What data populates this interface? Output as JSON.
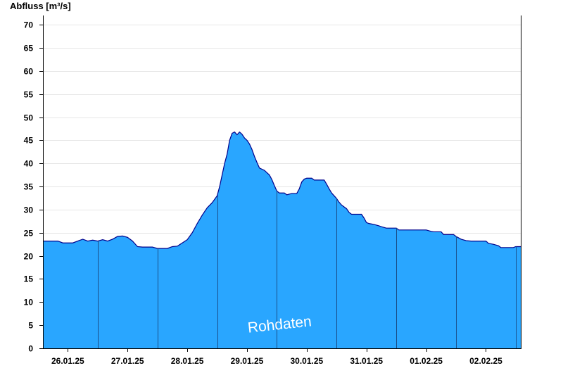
{
  "chart_data": {
    "type": "area",
    "title": "",
    "ylabel": "Abfluss [m³/s]",
    "xlabel": "",
    "ylim": [
      0,
      72
    ],
    "yticks": [
      0,
      5,
      10,
      15,
      20,
      25,
      30,
      35,
      40,
      45,
      50,
      55,
      60,
      65,
      70
    ],
    "xlim": [
      "2025-01-25T14:00",
      "2025-02-02T14:00"
    ],
    "xticks": [
      {
        "label": "26.01.25",
        "date": "2025-01-26T00:00"
      },
      {
        "label": "27.01.25",
        "date": "2025-01-27T00:00"
      },
      {
        "label": "28.01.25",
        "date": "2025-01-28T00:00"
      },
      {
        "label": "29.01.25",
        "date": "2025-01-29T00:00"
      },
      {
        "label": "30.01.25",
        "date": "2025-01-30T00:00"
      },
      {
        "label": "31.01.25",
        "date": "2025-01-31T00:00"
      },
      {
        "label": "01.02.25",
        "date": "2025-02-01T00:00"
      },
      {
        "label": "02.02.25",
        "date": "2025-02-02T00:00"
      }
    ],
    "grid": true,
    "fill_color": "#29a6ff",
    "line_color": "#00008b",
    "watermark": "Rohdaten",
    "series": [
      {
        "points": [
          [
            "2025-01-25T14:00",
            23.2
          ],
          [
            "2025-01-25T16:00",
            23.2
          ],
          [
            "2025-01-25T20:00",
            23.2
          ],
          [
            "2025-01-25T22:00",
            22.8
          ],
          [
            "2025-01-26T02:00",
            22.8
          ],
          [
            "2025-01-26T04:00",
            23.2
          ],
          [
            "2025-01-26T06:00",
            23.6
          ],
          [
            "2025-01-26T08:00",
            23.2
          ],
          [
            "2025-01-26T10:00",
            23.4
          ],
          [
            "2025-01-26T12:00",
            23.2
          ],
          [
            "2025-01-26T14:00",
            23.5
          ],
          [
            "2025-01-26T16:00",
            23.2
          ],
          [
            "2025-01-26T18:00",
            23.6
          ],
          [
            "2025-01-26T20:00",
            24.2
          ],
          [
            "2025-01-26T22:00",
            24.3
          ],
          [
            "2025-01-27T00:00",
            24.0
          ],
          [
            "2025-01-27T02:00",
            23.2
          ],
          [
            "2025-01-27T04:00",
            22.0
          ],
          [
            "2025-01-27T06:00",
            21.9
          ],
          [
            "2025-01-27T10:00",
            21.9
          ],
          [
            "2025-01-27T12:00",
            21.6
          ],
          [
            "2025-01-27T16:00",
            21.6
          ],
          [
            "2025-01-27T18:00",
            22.0
          ],
          [
            "2025-01-27T20:00",
            22.1
          ],
          [
            "2025-01-27T22:00",
            22.8
          ],
          [
            "2025-01-28T00:00",
            23.5
          ],
          [
            "2025-01-28T02:00",
            25.0
          ],
          [
            "2025-01-28T04:00",
            27.0
          ],
          [
            "2025-01-28T06:00",
            28.8
          ],
          [
            "2025-01-28T08:00",
            30.4
          ],
          [
            "2025-01-28T10:00",
            31.5
          ],
          [
            "2025-01-28T12:00",
            33.0
          ],
          [
            "2025-01-28T13:00",
            35.0
          ],
          [
            "2025-01-28T14:00",
            37.5
          ],
          [
            "2025-01-28T15:00",
            40.0
          ],
          [
            "2025-01-28T16:00",
            42.0
          ],
          [
            "2025-01-28T17:00",
            45.0
          ],
          [
            "2025-01-28T18:00",
            46.5
          ],
          [
            "2025-01-28T19:00",
            46.8
          ],
          [
            "2025-01-28T20:00",
            46.2
          ],
          [
            "2025-01-28T21:00",
            46.8
          ],
          [
            "2025-01-28T22:00",
            46.3
          ],
          [
            "2025-01-28T23:00",
            45.5
          ],
          [
            "2025-01-29T00:00",
            45.0
          ],
          [
            "2025-01-29T01:00",
            44.2
          ],
          [
            "2025-01-29T02:00",
            43.0
          ],
          [
            "2025-01-29T03:00",
            41.5
          ],
          [
            "2025-01-29T04:00",
            40.2
          ],
          [
            "2025-01-29T05:00",
            39.0
          ],
          [
            "2025-01-29T07:00",
            38.5
          ],
          [
            "2025-01-29T09:00",
            37.5
          ],
          [
            "2025-01-29T10:00",
            36.5
          ],
          [
            "2025-01-29T11:00",
            35.2
          ],
          [
            "2025-01-29T12:00",
            34.0
          ],
          [
            "2025-01-29T13:00",
            33.6
          ],
          [
            "2025-01-29T15:00",
            33.6
          ],
          [
            "2025-01-29T16:00",
            33.2
          ],
          [
            "2025-01-29T18:00",
            33.5
          ],
          [
            "2025-01-29T20:00",
            33.5
          ],
          [
            "2025-01-29T21:00",
            34.5
          ],
          [
            "2025-01-29T22:00",
            36.0
          ],
          [
            "2025-01-29T23:00",
            36.6
          ],
          [
            "2025-01-30T00:00",
            36.8
          ],
          [
            "2025-01-30T02:00",
            36.8
          ],
          [
            "2025-01-30T03:00",
            36.4
          ],
          [
            "2025-01-30T07:00",
            36.4
          ],
          [
            "2025-01-30T08:00",
            35.5
          ],
          [
            "2025-01-30T09:00",
            34.5
          ],
          [
            "2025-01-30T10:00",
            33.6
          ],
          [
            "2025-01-30T11:00",
            33.0
          ],
          [
            "2025-01-30T12:00",
            32.4
          ],
          [
            "2025-01-30T13:00",
            31.6
          ],
          [
            "2025-01-30T14:00",
            31.0
          ],
          [
            "2025-01-30T15:00",
            30.6
          ],
          [
            "2025-01-30T16:00",
            30.2
          ],
          [
            "2025-01-30T17:00",
            29.4
          ],
          [
            "2025-01-30T18:00",
            29.0
          ],
          [
            "2025-01-30T22:00",
            29.0
          ],
          [
            "2025-01-30T23:00",
            28.2
          ],
          [
            "2025-01-31T00:00",
            27.2
          ],
          [
            "2025-01-31T01:00",
            27.0
          ],
          [
            "2025-01-31T03:00",
            26.8
          ],
          [
            "2025-01-31T05:00",
            26.5
          ],
          [
            "2025-01-31T06:00",
            26.3
          ],
          [
            "2025-01-31T08:00",
            26.0
          ],
          [
            "2025-01-31T12:00",
            26.0
          ],
          [
            "2025-01-31T13:00",
            25.6
          ],
          [
            "2025-02-01T00:00",
            25.6
          ],
          [
            "2025-02-01T02:00",
            25.3
          ],
          [
            "2025-02-01T03:00",
            25.2
          ],
          [
            "2025-02-01T06:00",
            25.2
          ],
          [
            "2025-02-01T07:00",
            24.6
          ],
          [
            "2025-02-01T11:00",
            24.6
          ],
          [
            "2025-02-01T12:00",
            24.2
          ],
          [
            "2025-02-01T14:00",
            23.6
          ],
          [
            "2025-02-01T16:00",
            23.3
          ],
          [
            "2025-02-01T18:00",
            23.2
          ],
          [
            "2025-02-02T00:00",
            23.2
          ],
          [
            "2025-02-02T01:00",
            22.7
          ],
          [
            "2025-02-02T03:00",
            22.5
          ],
          [
            "2025-02-02T05:00",
            22.2
          ],
          [
            "2025-02-02T06:00",
            21.8
          ],
          [
            "2025-02-02T11:00",
            21.8
          ],
          [
            "2025-02-02T12:00",
            22.0
          ],
          [
            "2025-02-02T14:00",
            22.0
          ]
        ]
      }
    ]
  }
}
